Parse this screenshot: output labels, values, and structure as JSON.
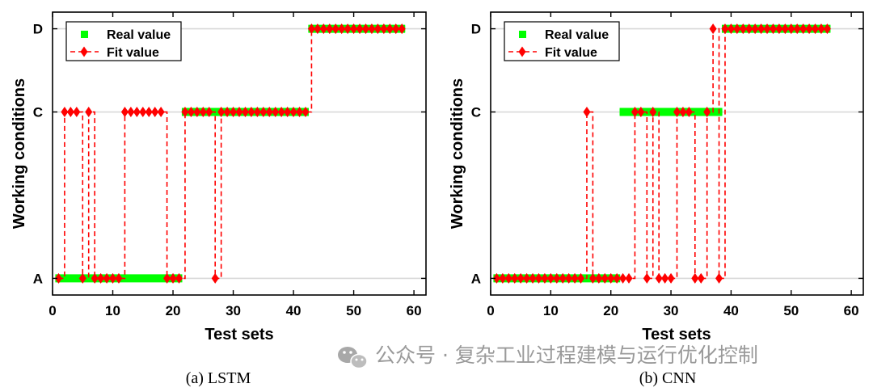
{
  "colors": {
    "real": "#00ff00",
    "fit": "#ff0000",
    "grid": "#d9d9d9",
    "axis": "#000000"
  },
  "watermark": {
    "text": "公众号 · 复杂工业过程建模与运行优化控制",
    "icon": "wechat-icon"
  },
  "chart_data": [
    {
      "type": "line",
      "caption": "(a) LSTM",
      "xlabel": "Test sets",
      "ylabel": "Working conditions",
      "xlim": [
        0,
        62
      ],
      "xticks": [
        0,
        10,
        20,
        30,
        40,
        50,
        60
      ],
      "ylim": [
        0.8,
        4.2
      ],
      "ytick_values": [
        1,
        3,
        4
      ],
      "ytick_labels": [
        "A",
        "C",
        "D"
      ],
      "grid": "horizontal",
      "legend": {
        "position": "top-left",
        "real_label": "Real value",
        "fit_label": "Fit value"
      },
      "series": [
        {
          "name": "Real value",
          "x": [
            1,
            2,
            3,
            4,
            5,
            6,
            7,
            8,
            9,
            10,
            11,
            12,
            13,
            14,
            15,
            16,
            17,
            18,
            19,
            20,
            21,
            22,
            23,
            24,
            25,
            26,
            27,
            28,
            29,
            30,
            31,
            32,
            33,
            34,
            35,
            36,
            37,
            38,
            39,
            40,
            41,
            42,
            43,
            44,
            45,
            46,
            47,
            48,
            49,
            50,
            51,
            52,
            53,
            54,
            55,
            56,
            57,
            58
          ],
          "y": [
            1,
            1,
            1,
            1,
            1,
            1,
            1,
            1,
            1,
            1,
            1,
            1,
            1,
            1,
            1,
            1,
            1,
            1,
            1,
            1,
            1,
            3,
            3,
            3,
            3,
            3,
            3,
            3,
            3,
            3,
            3,
            3,
            3,
            3,
            3,
            3,
            3,
            3,
            3,
            3,
            3,
            3,
            4,
            4,
            4,
            4,
            4,
            4,
            4,
            4,
            4,
            4,
            4,
            4,
            4,
            4,
            4,
            4
          ]
        },
        {
          "name": "Fit value",
          "x": [
            1,
            2,
            3,
            4,
            5,
            6,
            7,
            8,
            9,
            10,
            11,
            12,
            13,
            14,
            15,
            16,
            17,
            18,
            19,
            20,
            21,
            22,
            23,
            24,
            25,
            26,
            27,
            28,
            29,
            30,
            31,
            32,
            33,
            34,
            35,
            36,
            37,
            38,
            39,
            40,
            41,
            42,
            43,
            44,
            45,
            46,
            47,
            48,
            49,
            50,
            51,
            52,
            53,
            54,
            55,
            56,
            57,
            58
          ],
          "y": [
            1,
            3,
            3,
            3,
            1,
            3,
            1,
            1,
            1,
            1,
            1,
            3,
            3,
            3,
            3,
            3,
            3,
            3,
            1,
            1,
            1,
            3,
            3,
            3,
            3,
            3,
            1,
            3,
            3,
            3,
            3,
            3,
            3,
            3,
            3,
            3,
            3,
            3,
            3,
            3,
            3,
            3,
            4,
            4,
            4,
            4,
            4,
            4,
            4,
            4,
            4,
            4,
            4,
            4,
            4,
            4,
            4,
            4
          ]
        }
      ]
    },
    {
      "type": "line",
      "caption": "(b) CNN",
      "xlabel": "Test sets",
      "ylabel": "Working conditions",
      "xlim": [
        0,
        62
      ],
      "xticks": [
        0,
        10,
        20,
        30,
        40,
        50,
        60
      ],
      "ylim": [
        0.8,
        4.2
      ],
      "ytick_values": [
        1,
        3,
        4
      ],
      "ytick_labels": [
        "A",
        "C",
        "D"
      ],
      "grid": "horizontal",
      "legend": {
        "position": "top-left",
        "real_label": "Real value",
        "fit_label": "Fit value"
      },
      "series": [
        {
          "name": "Real value",
          "x": [
            1,
            2,
            3,
            4,
            5,
            6,
            7,
            8,
            9,
            10,
            11,
            12,
            13,
            14,
            15,
            16,
            17,
            18,
            19,
            20,
            21,
            22,
            23,
            24,
            25,
            26,
            27,
            28,
            29,
            30,
            31,
            32,
            33,
            34,
            35,
            36,
            37,
            38,
            39,
            40,
            41,
            42,
            43,
            44,
            45,
            46,
            47,
            48,
            49,
            50,
            51,
            52,
            53,
            54,
            55,
            56
          ],
          "y": [
            1,
            1,
            1,
            1,
            1,
            1,
            1,
            1,
            1,
            1,
            1,
            1,
            1,
            1,
            1,
            1,
            1,
            1,
            1,
            1,
            1,
            3,
            3,
            3,
            3,
            3,
            3,
            3,
            3,
            3,
            3,
            3,
            3,
            3,
            3,
            3,
            3,
            3,
            4,
            4,
            4,
            4,
            4,
            4,
            4,
            4,
            4,
            4,
            4,
            4,
            4,
            4,
            4,
            4,
            4,
            4
          ]
        },
        {
          "name": "Fit value",
          "x": [
            1,
            2,
            3,
            4,
            5,
            6,
            7,
            8,
            9,
            10,
            11,
            12,
            13,
            14,
            15,
            16,
            17,
            18,
            19,
            20,
            21,
            22,
            23,
            24,
            25,
            26,
            27,
            28,
            29,
            30,
            31,
            32,
            33,
            34,
            35,
            36,
            37,
            38,
            39,
            40,
            41,
            42,
            43,
            44,
            45,
            46,
            47,
            48,
            49,
            50,
            51,
            52,
            53,
            54,
            55,
            56
          ],
          "y": [
            1,
            1,
            1,
            1,
            1,
            1,
            1,
            1,
            1,
            1,
            1,
            1,
            1,
            1,
            1,
            3,
            1,
            1,
            1,
            1,
            1,
            1,
            1,
            3,
            3,
            1,
            3,
            1,
            1,
            1,
            3,
            3,
            3,
            1,
            1,
            3,
            4,
            1,
            4,
            4,
            4,
            4,
            4,
            4,
            4,
            4,
            4,
            4,
            4,
            4,
            4,
            4,
            4,
            4,
            4,
            4
          ]
        }
      ]
    }
  ]
}
